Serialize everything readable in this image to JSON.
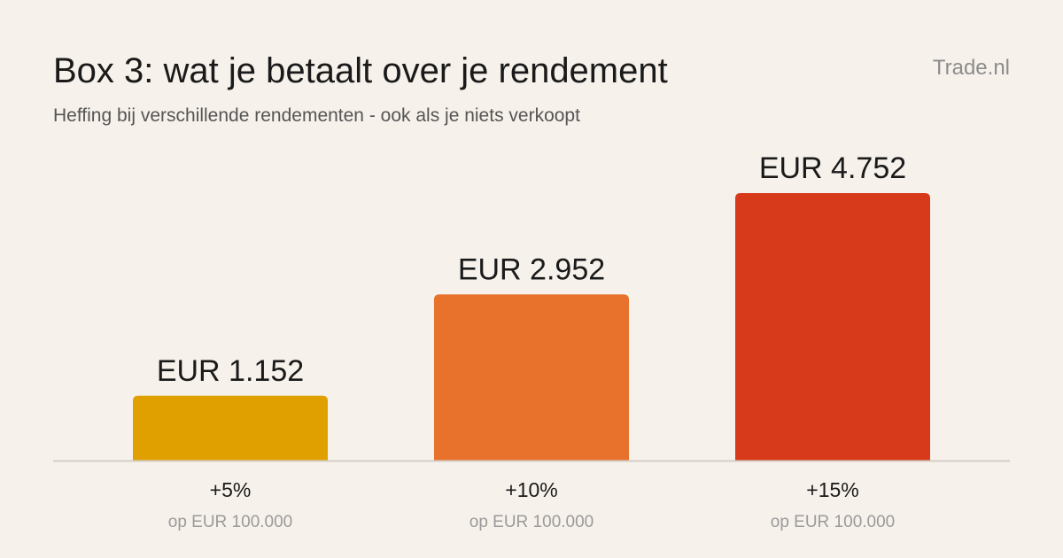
{
  "brand": "Trade.nl",
  "chart_data": {
    "type": "bar",
    "title": "Box 3: wat je betaalt over je rendement",
    "subtitle": "Heffing bij verschillende rendementen - ook als je niets verkoopt",
    "categories": [
      "+5%",
      "+10%",
      "+15%"
    ],
    "category_sublabels": [
      "op EUR 100.000",
      "op EUR 100.000",
      "op EUR 100.000"
    ],
    "values": [
      1152,
      2952,
      4752
    ],
    "value_labels": [
      "EUR 1.152",
      "EUR 2.952",
      "EUR 4.752"
    ],
    "colors": [
      "#e0a000",
      "#e8712c",
      "#d63a1a"
    ],
    "ylim": [
      0,
      5000
    ],
    "grid": false,
    "legend": "none"
  }
}
